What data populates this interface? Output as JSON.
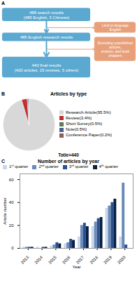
{
  "chart_data": [
    {
      "type": "flowchart",
      "panel": "A",
      "boxes": [
        {
          "text": "488 search results\n(485 English, 3 Chinese)",
          "color": "#5BA8D0"
        },
        {
          "text": "485 English research results",
          "color": "#5BA8D0"
        },
        {
          "text": "440 final results\n(420 articles, 15 reviews, 5 others)",
          "color": "#5BA8D0"
        }
      ],
      "side_boxes": [
        {
          "text": "Limit to language English",
          "color": "#E8A07A"
        },
        {
          "text": "Excluding unpublished articles,\nerratum, and book chapters",
          "color": "#E8A07A"
        }
      ]
    },
    {
      "type": "pie",
      "panel": "B",
      "title": "Articles by type",
      "subtitle": "Totie=440",
      "categories": [
        "Research Article(95.5%)",
        "Review(3.4%)",
        "Short Survey(0.5%)",
        "Note(0.5%)",
        "Conference Paper(0.2%)"
      ],
      "values": [
        95.5,
        3.4,
        0.5,
        0.5,
        0.2
      ],
      "colors": [
        "#D8D8D8",
        "#C03030",
        "#5A7A5A",
        "#4A6090",
        "#8A6050"
      ],
      "legend": "right"
    },
    {
      "type": "bar",
      "panel": "C",
      "title": "Number of articles by year",
      "xlabel": "Year",
      "ylabel": "Article number",
      "categories": [
        "2013",
        "2014",
        "2015",
        "2016",
        "2017",
        "2018",
        "2019",
        "2020"
      ],
      "series": [
        {
          "name": "1ˢᵗ quarter",
          "color": "#C8D8EC",
          "values": [
            1,
            1,
            2,
            4,
            10,
            19,
            35,
            10
          ]
        },
        {
          "name": "2ⁿᵈ quarter",
          "color": "#6A8AB8",
          "values": [
            1,
            0,
            3,
            5,
            20,
            23,
            37,
            57
          ]
        },
        {
          "name": "3ʳᵈ quarter",
          "color": "#2A5090",
          "values": [
            1,
            1,
            5,
            8,
            22,
            26,
            40,
            3
          ]
        },
        {
          "name": "4ᵗʰ quarter",
          "color": "#0A1E40",
          "values": [
            1,
            1,
            4,
            7,
            19,
            27,
            43,
            0
          ]
        }
      ],
      "ylim": [
        0,
        65
      ],
      "yticks": [
        0,
        20,
        40,
        60
      ],
      "legend": "top"
    }
  ]
}
